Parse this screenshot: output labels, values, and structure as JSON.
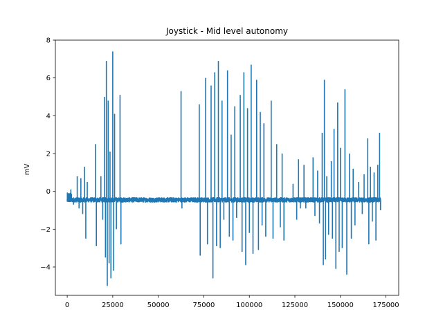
{
  "chart_data": {
    "type": "line",
    "title": "Joystick - Mid level autonomy",
    "xlabel": "",
    "ylabel": "mV",
    "xlim": [
      -6500,
      182000
    ],
    "ylim": [
      -5.5,
      8.0
    ],
    "xticks": [
      0,
      25000,
      50000,
      75000,
      100000,
      125000,
      150000,
      175000
    ],
    "yticks": [
      -4,
      -2,
      0,
      2,
      4,
      6,
      8
    ],
    "grid": false,
    "legend": "none",
    "color": "#1f77b4",
    "baseline": -0.45,
    "baseline_noise": 0.12,
    "n_samples": 172000,
    "series": [
      {
        "values_description": "noisy signal near -0.45 mV with sharp spike bursts",
        "spikes": [
          [
            2000,
            0.1
          ],
          [
            3500,
            -0.7
          ],
          [
            5500,
            0.8
          ],
          [
            6500,
            -0.9
          ],
          [
            7500,
            0.7
          ],
          [
            8500,
            -1.2
          ],
          [
            9500,
            1.3
          ],
          [
            10200,
            -2.5
          ],
          [
            11000,
            0.5
          ],
          [
            15500,
            2.5
          ],
          [
            16000,
            -2.9
          ],
          [
            18500,
            0.8
          ],
          [
            19500,
            -1.5
          ],
          [
            20500,
            5.0
          ],
          [
            21000,
            -3.5
          ],
          [
            21500,
            6.9
          ],
          [
            22000,
            -5.0
          ],
          [
            22500,
            4.8
          ],
          [
            23000,
            -3.8
          ],
          [
            23500,
            2.1
          ],
          [
            24000,
            -4.6
          ],
          [
            25000,
            7.4
          ],
          [
            25500,
            -4.2
          ],
          [
            26000,
            4.1
          ],
          [
            27000,
            -2.0
          ],
          [
            29000,
            5.1
          ],
          [
            29500,
            -2.8
          ],
          [
            62500,
            5.3
          ],
          [
            63000,
            -0.9
          ],
          [
            72500,
            4.6
          ],
          [
            73000,
            -3.4
          ],
          [
            76000,
            6.0
          ],
          [
            77000,
            -2.8
          ],
          [
            79000,
            5.6
          ],
          [
            80000,
            -4.6
          ],
          [
            81000,
            6.3
          ],
          [
            82000,
            -2.9
          ],
          [
            83000,
            6.9
          ],
          [
            84000,
            -3.0
          ],
          [
            85000,
            4.8
          ],
          [
            86000,
            -1.5
          ],
          [
            88000,
            6.4
          ],
          [
            89000,
            -2.4
          ],
          [
            90000,
            3.0
          ],
          [
            91000,
            -2.6
          ],
          [
            92000,
            4.5
          ],
          [
            93000,
            -1.4
          ],
          [
            95000,
            5.1
          ],
          [
            96000,
            -3.2
          ],
          [
            97000,
            6.3
          ],
          [
            98000,
            -3.9
          ],
          [
            99000,
            4.4
          ],
          [
            100000,
            -2.2
          ],
          [
            101000,
            6.7
          ],
          [
            102000,
            -3.3
          ],
          [
            104000,
            5.9
          ],
          [
            105000,
            -3.1
          ],
          [
            106000,
            4.2
          ],
          [
            107000,
            -1.8
          ],
          [
            108000,
            3.6
          ],
          [
            109000,
            -2.4
          ],
          [
            112000,
            4.8
          ],
          [
            113000,
            -2.5
          ],
          [
            115000,
            2.5
          ],
          [
            117000,
            -1.9
          ],
          [
            118000,
            2.0
          ],
          [
            119000,
            -2.6
          ],
          [
            124000,
            0.4
          ],
          [
            126000,
            -1.5
          ],
          [
            127000,
            1.7
          ],
          [
            128000,
            -0.9
          ],
          [
            130000,
            1.4
          ],
          [
            131000,
            -0.9
          ],
          [
            135000,
            1.8
          ],
          [
            136000,
            -1.3
          ],
          [
            137500,
            1.1
          ],
          [
            138500,
            -1.7
          ],
          [
            140000,
            3.1
          ],
          [
            140600,
            -3.9
          ],
          [
            141200,
            5.9
          ],
          [
            141800,
            -3.6
          ],
          [
            142500,
            0.8
          ],
          [
            143500,
            -2.3
          ],
          [
            145000,
            1.6
          ],
          [
            145600,
            -2.5
          ],
          [
            146500,
            3.3
          ],
          [
            147500,
            -4.1
          ],
          [
            148500,
            4.7
          ],
          [
            149300,
            -3.2
          ],
          [
            150000,
            2.3
          ],
          [
            151000,
            -3.0
          ],
          [
            152500,
            5.4
          ],
          [
            153500,
            -4.4
          ],
          [
            155000,
            2.0
          ],
          [
            156000,
            -2.5
          ],
          [
            157000,
            1.2
          ],
          [
            158000,
            -1.8
          ],
          [
            160000,
            0.5
          ],
          [
            162000,
            -1.2
          ],
          [
            163000,
            0.9
          ],
          [
            165000,
            2.8
          ],
          [
            165600,
            -2.8
          ],
          [
            166500,
            1.3
          ],
          [
            167500,
            -1.6
          ],
          [
            168500,
            1.0
          ],
          [
            169500,
            -2.6
          ],
          [
            170500,
            1.4
          ],
          [
            171500,
            3.1
          ],
          [
            172000,
            -1.0
          ]
        ]
      }
    ]
  }
}
